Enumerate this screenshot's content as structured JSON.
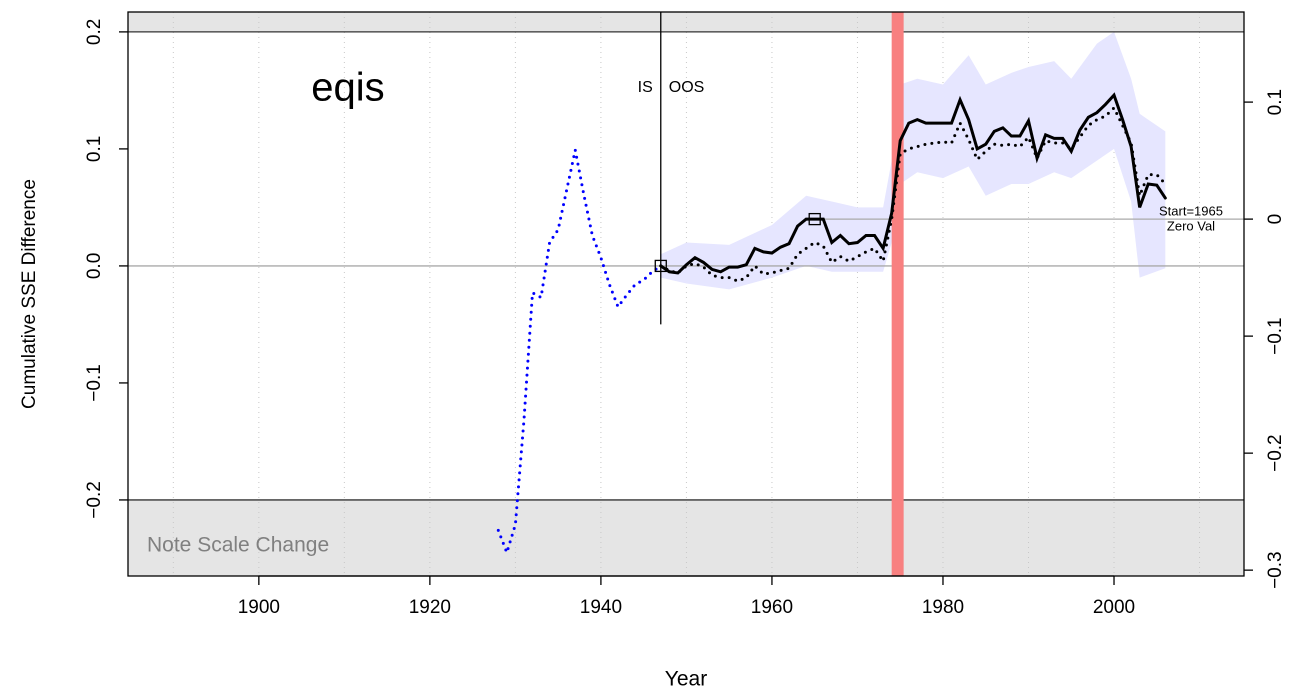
{
  "chart_data": {
    "type": "line",
    "title": "eqis",
    "xlabel": "Year",
    "ylabel": "Cumulative SSE Difference",
    "annotations": {
      "is": "IS",
      "oos": "OOS",
      "start": "Start=1965",
      "zero": "Zero Val",
      "scale_note": "Note Scale Change"
    },
    "xlim": [
      1884.7,
      2015.2
    ],
    "xticks": [
      1900,
      1920,
      1940,
      1960,
      1980,
      2000
    ],
    "xgrid": [
      1890,
      1900,
      1910,
      1920,
      1930,
      1940,
      1950,
      1960,
      1970,
      1980,
      1990,
      2000,
      2010
    ],
    "ylim": [
      -0.265,
      0.217
    ],
    "yticks": [
      {
        "value": 0.2,
        "label": "0.2"
      },
      {
        "value": 0.1,
        "label": "0.1"
      },
      {
        "value": 0.0,
        "label": "0.0"
      },
      {
        "value": -0.1,
        "label": "−0.1"
      },
      {
        "value": -0.2,
        "label": "−0.2"
      }
    ],
    "y2lim": [
      -0.305,
      0.177
    ],
    "y2ticks": [
      {
        "value": 0.1,
        "label": "0.1"
      },
      0,
      {
        "value": -0.1,
        "label": "−0.1"
      },
      {
        "value": -0.2,
        "label": "−0.2"
      },
      {
        "value": -0.3,
        "label": "−0.3"
      }
    ],
    "scale_breaks": [
      0.2,
      -0.2
    ],
    "shade_color": "#e5e5e5",
    "highlight": {
      "x": [
        1974,
        1975.4
      ],
      "color": "#f88080"
    },
    "split": {
      "x": 1947,
      "ymin": -0.05
    },
    "zero_line": {
      "x": 1965,
      "y2": 0
    },
    "markers": [
      1947,
      1965
    ],
    "band": {
      "color": "#e6e6ff",
      "x": [
        1947,
        1950,
        1955,
        1960,
        1964,
        1967,
        1970,
        1973,
        1974,
        1975,
        1977,
        1980,
        1983,
        1985,
        1988,
        1990,
        1993,
        1995,
        1998,
        2000,
        2002,
        2003,
        2006
      ],
      "lower": [
        -0.01,
        -0.015,
        -0.02,
        -0.01,
        0.0,
        -0.005,
        -0.005,
        -0.005,
        0.02,
        0.07,
        0.08,
        0.075,
        0.085,
        0.06,
        0.07,
        0.07,
        0.08,
        0.075,
        0.09,
        0.1,
        0.055,
        -0.01,
        -0.002
      ],
      "upper": [
        0.01,
        0.02,
        0.018,
        0.035,
        0.06,
        0.055,
        0.05,
        0.05,
        0.09,
        0.155,
        0.16,
        0.155,
        0.18,
        0.155,
        0.165,
        0.17,
        0.175,
        0.16,
        0.19,
        0.2,
        0.16,
        0.13,
        0.115
      ]
    },
    "series": [
      {
        "color": "#0000ff",
        "style": "dotted",
        "x": [
          1928,
          1929,
          1930,
          1931,
          1932,
          1933,
          1934,
          1935,
          1936,
          1937,
          1938,
          1939,
          1940,
          1941,
          1942,
          1943,
          1944,
          1945,
          1946,
          1947
        ],
        "values": [
          -0.226,
          -0.245,
          -0.221,
          -0.132,
          -0.023,
          -0.027,
          0.02,
          0.031,
          0.065,
          0.099,
          0.061,
          0.026,
          0.007,
          -0.016,
          -0.035,
          -0.025,
          -0.016,
          -0.012,
          -0.005,
          0
        ]
      },
      {
        "color": "#000000",
        "style": "solid",
        "x": [
          1947,
          1948,
          1949,
          1950,
          1951,
          1952,
          1953,
          1954,
          1955,
          1956,
          1957,
          1958,
          1959,
          1960,
          1961,
          1962,
          1963,
          1964,
          1965,
          1966,
          1967,
          1968,
          1969,
          1970,
          1971,
          1972,
          1973,
          1974,
          1975,
          1976,
          1977,
          1978,
          1979,
          1980,
          1981,
          1982,
          1983,
          1984,
          1985,
          1986,
          1987,
          1988,
          1989,
          1990,
          1991,
          1992,
          1993,
          1994,
          1995,
          1996,
          1997,
          1998,
          1999,
          2000,
          2001,
          2002,
          2003,
          2004,
          2005,
          2006
        ],
        "values": [
          0,
          -0.005,
          -0.006,
          0.001,
          0.007,
          0.003,
          -0.003,
          -0.005,
          -0.001,
          -0.001,
          0.001,
          0.015,
          0.012,
          0.011,
          0.016,
          0.019,
          0.034,
          0.04,
          0.04,
          0.04,
          0.02,
          0.026,
          0.019,
          0.02,
          0.026,
          0.026,
          0.015,
          0.045,
          0.107,
          0.122,
          0.125,
          0.122,
          0.122,
          0.122,
          0.122,
          0.142,
          0.125,
          0.1,
          0.104,
          0.115,
          0.118,
          0.111,
          0.111,
          0.124,
          0.092,
          0.112,
          0.109,
          0.109,
          0.098,
          0.116,
          0.127,
          0.131,
          0.138,
          0.146,
          0.125,
          0.102,
          0.05,
          0.07,
          0.069,
          0.058
        ]
      },
      {
        "color": "#000000",
        "style": "dotted",
        "x": [
          1947,
          1948,
          1949,
          1950,
          1951,
          1952,
          1953,
          1954,
          1955,
          1956,
          1957,
          1958,
          1959,
          1960,
          1961,
          1962,
          1963,
          1964,
          1965,
          1966,
          1967,
          1968,
          1969,
          1970,
          1971,
          1972,
          1973,
          1974,
          1975,
          1976,
          1977,
          1978,
          1979,
          1980,
          1981,
          1982,
          1983,
          1984,
          1985,
          1986,
          1987,
          1988,
          1989,
          1990,
          1991,
          1992,
          1993,
          1994,
          1995,
          1996,
          1997,
          1998,
          1999,
          2000,
          2001,
          2002,
          2003,
          2004,
          2005,
          2006
        ],
        "values": [
          0,
          -0.004,
          -0.006,
          0,
          0.002,
          -0.001,
          -0.008,
          -0.01,
          -0.01,
          -0.013,
          -0.01,
          0,
          -0.007,
          -0.006,
          -0.004,
          -0.002,
          0.01,
          0.015,
          0.02,
          0.017,
          0.003,
          0.008,
          0.004,
          0.008,
          0.012,
          0.015,
          0.004,
          0.04,
          0.096,
          0.1,
          0.102,
          0.104,
          0.105,
          0.106,
          0.105,
          0.122,
          0.108,
          0.091,
          0.098,
          0.104,
          0.103,
          0.104,
          0.102,
          0.11,
          0.092,
          0.107,
          0.105,
          0.105,
          0.1,
          0.11,
          0.12,
          0.125,
          0.128,
          0.135,
          0.12,
          0.105,
          0.06,
          0.078,
          0.078,
          0.07
        ]
      }
    ]
  }
}
